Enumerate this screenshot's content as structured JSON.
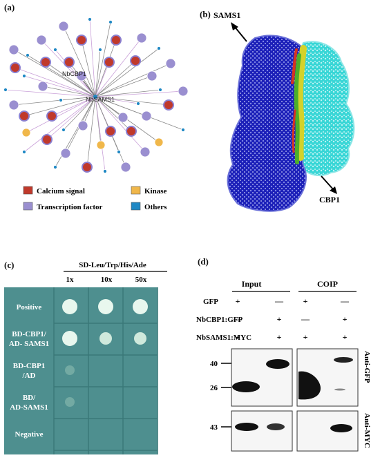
{
  "panels": {
    "a": "(a)",
    "b": "(b)",
    "c": "(c)",
    "d": "(d)"
  },
  "network": {
    "hub_label": "NbSAMS1",
    "partner_label": "NbCBP1",
    "legend": [
      {
        "label": "Calcium signal",
        "color": "#c0392b"
      },
      {
        "label": "Kinase",
        "color": "#f0b74a"
      },
      {
        "label": "Transcription factor",
        "color": "#9a8fd0"
      },
      {
        "label": "Others",
        "color": "#1f88c4"
      }
    ]
  },
  "structure": {
    "label_sams1": "SAMS1",
    "label_cbp1": "CBP1",
    "colors": {
      "sams1": "#1b1fb8",
      "cbp1": "#38d6d6",
      "interface": "#4caf2a"
    }
  },
  "y2h": {
    "medium": "SD-Leu/Trp/His/Ade",
    "dilutions": [
      "1x",
      "10x",
      "50x"
    ],
    "rows": [
      {
        "label_lines": [
          "Positive"
        ],
        "spots": [
          3,
          3,
          3
        ]
      },
      {
        "label_lines": [
          "BD-CBP1/",
          "AD- SAMS1"
        ],
        "spots": [
          3,
          2,
          2
        ]
      },
      {
        "label_lines": [
          "BD-CBP1",
          "/AD"
        ],
        "spots": [
          1,
          0,
          0
        ]
      },
      {
        "label_lines": [
          "BD/",
          "AD-SAMS1"
        ],
        "spots": [
          1,
          0,
          0
        ]
      },
      {
        "label_lines": [
          "Negative"
        ],
        "spots": [
          0,
          0,
          0
        ]
      }
    ]
  },
  "western": {
    "group_input": "Input",
    "group_coip": "COIP",
    "constructs": [
      {
        "name": "GFP",
        "marks": [
          "+",
          "—",
          "+",
          "—"
        ]
      },
      {
        "name": "NbCBP1:GFP",
        "marks": [
          "—",
          "+",
          "—",
          "+"
        ]
      },
      {
        "name": "NbSAMS1:MYC",
        "marks": [
          "+",
          "+",
          "+",
          "+"
        ]
      }
    ],
    "blot_gfp": {
      "antibody": "Anti-GFP",
      "markers": [
        "40",
        "26"
      ]
    },
    "blot_myc": {
      "antibody": "Anti-MYC",
      "markers": [
        "43"
      ]
    }
  }
}
